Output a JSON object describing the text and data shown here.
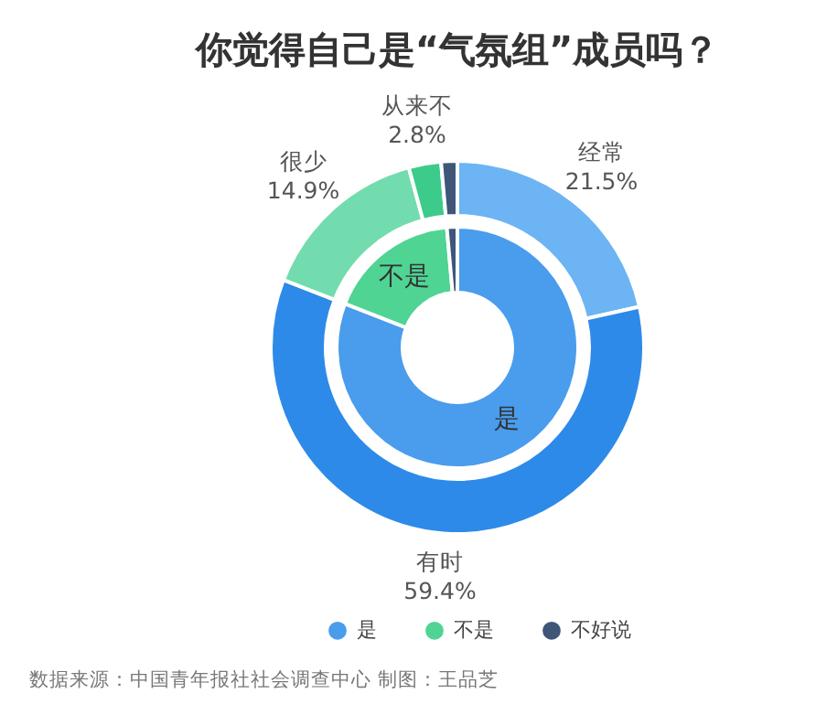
{
  "chart_data": [
    {
      "type": "donut",
      "title": "你觉得自己是“气氛组”成员吗？",
      "categories": [
        "经常",
        "有时",
        "很少",
        "从来不",
        null
      ],
      "values": [
        21.5,
        59.4,
        14.9,
        2.8,
        1.4
      ],
      "colors": [
        "#6cb4f3",
        "#2d8ae8",
        "#72dcae",
        "#3ccb8a",
        "#3f5679"
      ],
      "value_labels": [
        "21.5%",
        "59.4%",
        "14.9%",
        "2.8%",
        null
      ],
      "annotations": [
        "数据来源：中国青年报社社会调查中心 制图：王品芝"
      ]
    },
    {
      "type": "donut",
      "categories": [
        "是",
        "不是",
        "不好说"
      ],
      "values": [
        80.9,
        17.7,
        1.4
      ],
      "colors": [
        "#4a9cec",
        "#4fd494",
        "#3f5679"
      ],
      "value_labels": [
        "是",
        "不是",
        null
      ],
      "legend": "bottom"
    }
  ]
}
